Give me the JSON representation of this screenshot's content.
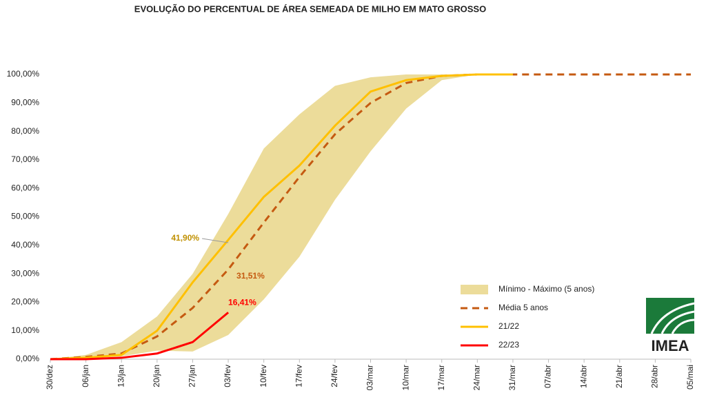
{
  "chart_data": {
    "type": "line",
    "title": "EVOLUÇÃO DO PERCENTUAL DE ÁREA SEMEADA DE MILHO EM MATO GROSSO",
    "logo": "IMEA",
    "categories": [
      "30/dez",
      "06/jan",
      "13/jan",
      "20/jan",
      "27/jan",
      "03/fev",
      "10/fev",
      "17/fev",
      "24/fev",
      "03/mar",
      "10/mar",
      "17/mar",
      "24/mar",
      "31/mar",
      "07/abr",
      "14/abr",
      "21/abr",
      "28/abr",
      "05/mai"
    ],
    "ylim": [
      0,
      100
    ],
    "yticks": [
      {
        "value": 0,
        "label": "0,00%"
      },
      {
        "value": 10,
        "label": "10,00%"
      },
      {
        "value": 20,
        "label": "20,00%"
      },
      {
        "value": 30,
        "label": "30,00%"
      },
      {
        "value": 40,
        "label": "40,00%"
      },
      {
        "value": 50,
        "label": "50,00%"
      },
      {
        "value": 60,
        "label": "60,00%"
      },
      {
        "value": 70,
        "label": "70,00%"
      },
      {
        "value": 80,
        "label": "80,00%"
      },
      {
        "value": 90,
        "label": "90,00%"
      },
      {
        "value": 100,
        "label": "100,00%"
      }
    ],
    "band": {
      "name": "Mínimo - Máximo (5 anos)",
      "color": "#ecdc9a",
      "min": [
        0,
        0.3,
        1,
        3,
        2.7,
        8.5,
        21,
        36,
        56,
        73,
        88,
        98,
        100,
        100,
        null,
        null,
        null,
        null,
        null
      ],
      "max": [
        0,
        1.5,
        6,
        15,
        30,
        51,
        74,
        86,
        96,
        99,
        100,
        100,
        100,
        100,
        null,
        null,
        null,
        null,
        null
      ]
    },
    "series": [
      {
        "name": "Média 5 anos",
        "color": "#c55a11",
        "dashed": true,
        "values": [
          0,
          0.8,
          2,
          8,
          18,
          31.51,
          48,
          64,
          79,
          90,
          97,
          99.5,
          100,
          100,
          100,
          100,
          100,
          100,
          100
        ],
        "value_labels": [
          null,
          null,
          null,
          null,
          null,
          "31,51%",
          null,
          null,
          null,
          null,
          null,
          null,
          null,
          null,
          null,
          null,
          null,
          null,
          null
        ]
      },
      {
        "name": "21/22",
        "color": "#ffc000",
        "dashed": false,
        "values": [
          0,
          0.5,
          1.5,
          10,
          27,
          41.9,
          57,
          68,
          82,
          94,
          98,
          99.5,
          100,
          100,
          null,
          null,
          null,
          null,
          null
        ],
        "value_labels": [
          null,
          null,
          null,
          null,
          null,
          "41,90%",
          null,
          null,
          null,
          null,
          null,
          null,
          null,
          null,
          null,
          null,
          null,
          null,
          null
        ]
      },
      {
        "name": "22/23",
        "color": "#ff0000",
        "dashed": false,
        "values": [
          0,
          0,
          0.5,
          2,
          6,
          16.41,
          null,
          null,
          null,
          null,
          null,
          null,
          null,
          null,
          null,
          null,
          null,
          null,
          null
        ],
        "value_labels": [
          null,
          null,
          null,
          null,
          null,
          "16,41%",
          null,
          null,
          null,
          null,
          null,
          null,
          null,
          null,
          null,
          null,
          null,
          null,
          null
        ]
      }
    ]
  }
}
